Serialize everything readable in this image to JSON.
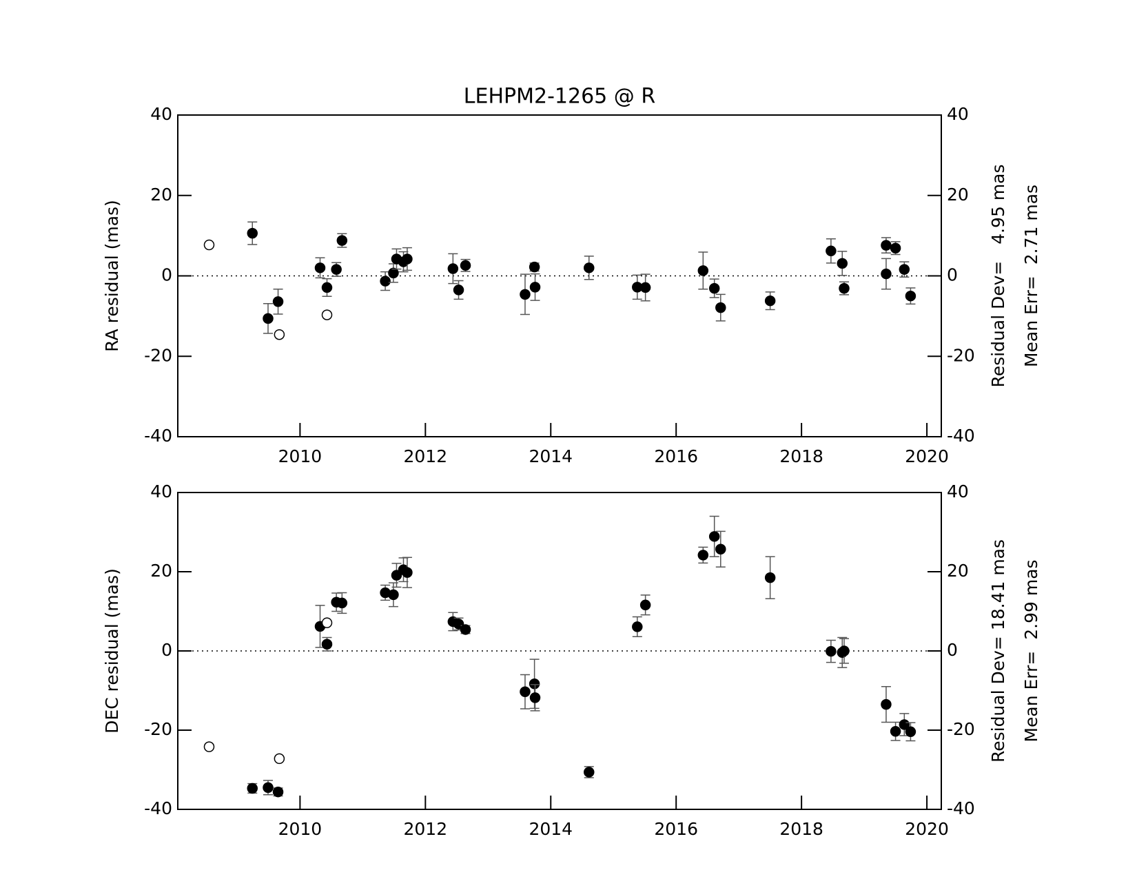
{
  "chart_data": [
    {
      "type": "scatter",
      "title": "LEHPM2-1265 @ R",
      "ylabel": "RA residual (mas)",
      "annotations": [
        "Residual Dev=   4.95 mas",
        "Mean Err=  2.71 mas"
      ],
      "xlim": [
        2008.05,
        2020.23
      ],
      "xticks": [
        2010,
        2012,
        2014,
        2016,
        2018,
        2020
      ],
      "ylim": [
        -40,
        40
      ],
      "yticks": [
        -40,
        -20,
        0,
        20,
        40
      ],
      "zero_line": true,
      "color": "#000000",
      "errcolor": "#555555",
      "series": [
        {
          "marker": "filled",
          "x": [
            2009.24,
            2009.49,
            2009.65,
            2010.32,
            2010.43,
            2010.58,
            2010.67,
            2011.36,
            2011.49,
            2011.54,
            2011.65,
            2011.71,
            2012.44,
            2012.53,
            2012.64,
            2013.59,
            2013.74,
            2013.75,
            2014.61,
            2015.38,
            2015.51,
            2016.43,
            2016.61,
            2016.71,
            2017.5,
            2018.47,
            2018.65,
            2018.68,
            2019.35,
            2019.35,
            2019.5,
            2019.64,
            2019.74
          ],
          "values": [
            10.6,
            -10.6,
            -6.4,
            2.0,
            -2.9,
            1.6,
            8.8,
            -1.3,
            0.7,
            4.2,
            3.5,
            4.2,
            1.8,
            -3.5,
            2.6,
            -4.6,
            2.2,
            -2.8,
            2.0,
            -2.8,
            -2.9,
            1.3,
            -3.1,
            -7.9,
            -6.2,
            6.2,
            3.1,
            -3.1,
            7.6,
            0.5,
            6.9,
            1.6,
            -5.0
          ],
          "errors": [
            2.8,
            3.7,
            3.1,
            2.5,
            2.2,
            1.7,
            1.7,
            2.3,
            2.3,
            2.5,
            2.5,
            2.8,
            3.7,
            2.3,
            1.5,
            5.0,
            1.0,
            3.3,
            2.9,
            3.0,
            3.3,
            4.6,
            2.3,
            3.3,
            2.2,
            3.0,
            3.0,
            1.6,
            1.9,
            3.8,
            1.6,
            1.9,
            2.0
          ]
        },
        {
          "marker": "open",
          "x": [
            2008.55,
            2009.67,
            2010.43
          ],
          "values": [
            7.7,
            -14.6,
            -9.7
          ]
        }
      ]
    },
    {
      "type": "scatter",
      "ylabel": "DEC residual (mas)",
      "annotations": [
        "Residual Dev= 18.41 mas",
        "Mean Err=  2.99 mas"
      ],
      "xlim": [
        2008.05,
        2020.23
      ],
      "xticks": [
        2010,
        2012,
        2014,
        2016,
        2018,
        2020
      ],
      "ylim": [
        -40,
        40
      ],
      "yticks": [
        -40,
        -20,
        0,
        20,
        40
      ],
      "zero_line": true,
      "color": "#000000",
      "errcolor": "#555555",
      "series": [
        {
          "marker": "filled",
          "x": [
            2009.24,
            2009.49,
            2009.65,
            2010.32,
            2010.43,
            2010.58,
            2010.67,
            2011.36,
            2011.49,
            2011.54,
            2011.65,
            2011.71,
            2012.44,
            2012.53,
            2012.64,
            2013.59,
            2013.74,
            2013.75,
            2014.61,
            2015.38,
            2015.51,
            2016.43,
            2016.61,
            2016.71,
            2017.5,
            2018.47,
            2018.65,
            2018.68,
            2019.35,
            2019.5,
            2019.64,
            2019.74
          ],
          "values": [
            -34.7,
            -34.5,
            -35.6,
            6.2,
            1.7,
            12.3,
            12.1,
            14.7,
            14.2,
            19.1,
            20.5,
            19.8,
            7.4,
            6.8,
            5.4,
            -10.3,
            -8.3,
            -11.8,
            -30.6,
            6.1,
            11.6,
            24.2,
            28.9,
            25.7,
            18.5,
            -0.1,
            -0.4,
            0,
            -13.5,
            -20.3,
            -18.6,
            -20.4
          ],
          "errors": [
            1.2,
            1.8,
            1.0,
            5.3,
            1.7,
            2.3,
            2.6,
            1.9,
            3.0,
            3.0,
            3.0,
            3.8,
            2.3,
            1.5,
            1.0,
            4.3,
            6.2,
            3.3,
            1.4,
            2.5,
            2.5,
            2.0,
            5.1,
            4.5,
            5.3,
            2.8,
            3.8,
            3.1,
            4.5,
            2.3,
            2.8,
            2.3
          ]
        },
        {
          "marker": "open",
          "x": [
            2008.55,
            2009.67,
            2010.43
          ],
          "values": [
            -24.2,
            -27.2,
            7.1
          ]
        }
      ]
    }
  ]
}
